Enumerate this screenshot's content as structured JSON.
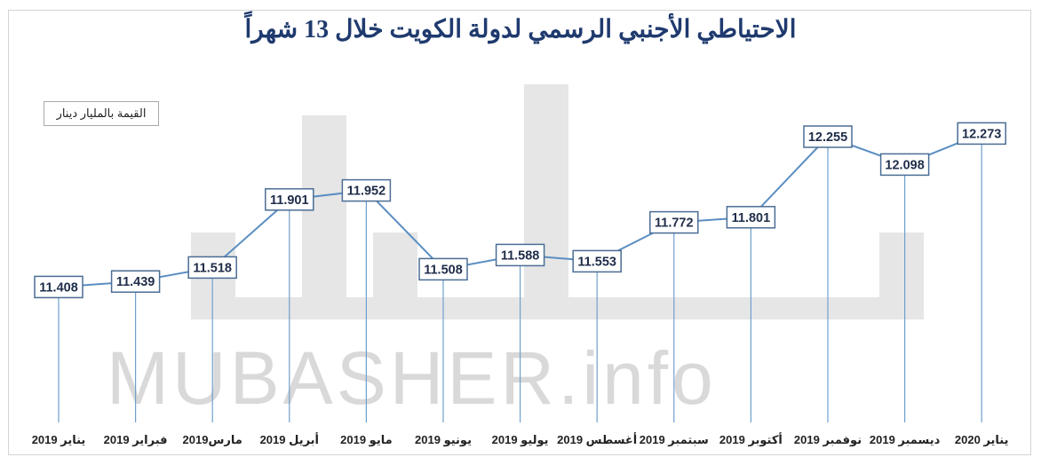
{
  "chart_data": {
    "type": "line",
    "title": "الاحتياطي الأجنبي الرسمي لدولة الكويت خلال 13 شهراً",
    "unit_note": "القيمة بالمليار دينار",
    "watermark": "MUBASHER.info",
    "categories": [
      "يناير 2019",
      "فبراير 2019",
      "مارس2019",
      "أبريل 2019",
      "مايو 2019",
      "يونيو 2019",
      "يوليو 2019",
      "أغسطس 2019",
      "سبتمبر 2019",
      "أكتوبر 2019",
      "نوفمبر 2019",
      "ديسمبر 2019",
      "يناير 2020"
    ],
    "values": [
      11.408,
      11.439,
      11.518,
      11.901,
      11.952,
      11.508,
      11.588,
      11.553,
      11.772,
      11.801,
      12.255,
      12.098,
      12.273
    ],
    "value_labels": [
      "11.408",
      "11.439",
      "11.518",
      "11.901",
      "11.952",
      "11.508",
      "11.588",
      "11.553",
      "11.772",
      "11.801",
      "12.255",
      "12.098",
      "12.273"
    ],
    "ylim": [
      11.15,
      12.55
    ],
    "grid": false,
    "legend": "none",
    "colors": {
      "line": "#5b8ec2",
      "drop_line": "#6fa0cc",
      "label_border": "#4a6d94",
      "title": "#1f3a6e",
      "watermark": "#d9d9d9"
    }
  }
}
